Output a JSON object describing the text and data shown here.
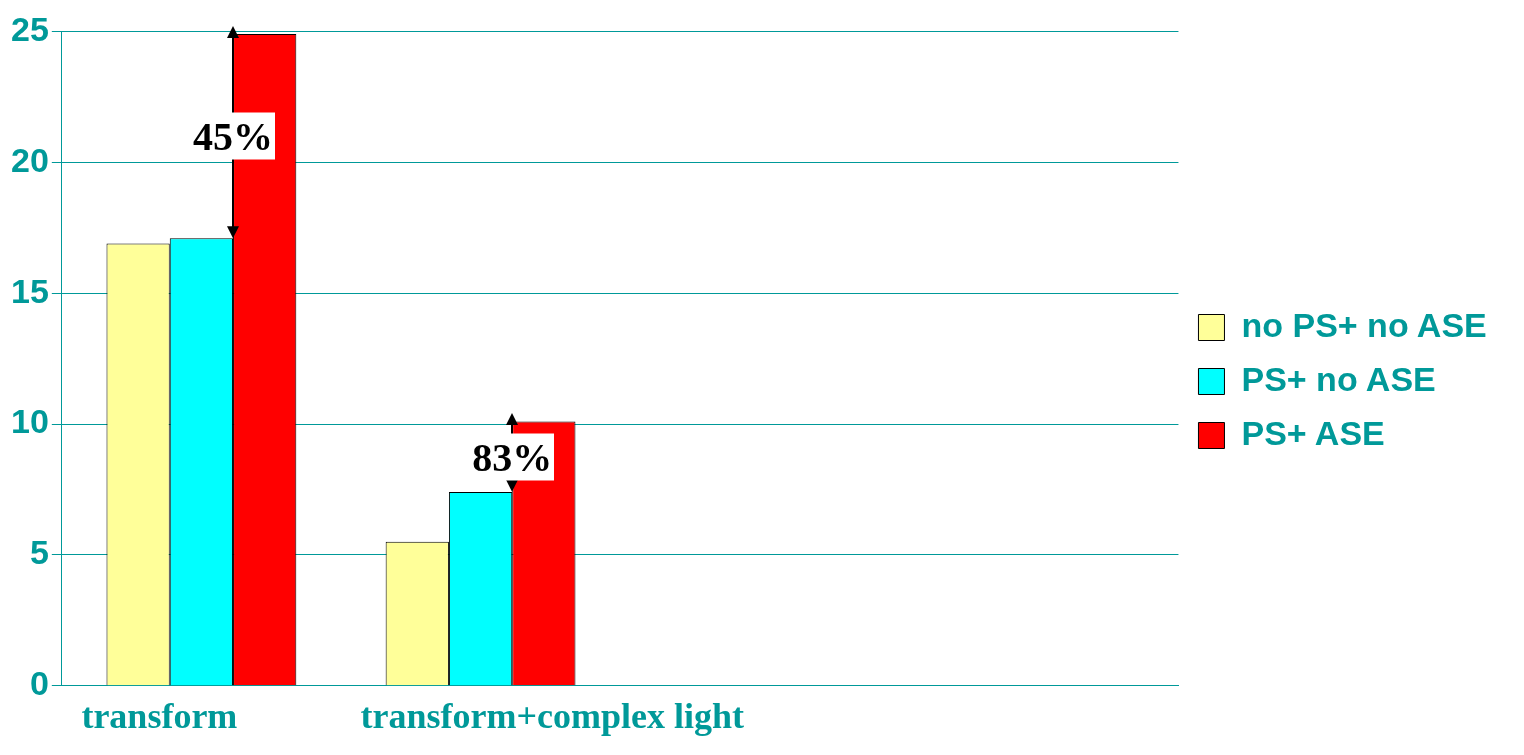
{
  "chart_data": {
    "type": "bar",
    "categories": [
      "transform",
      "transform+complex light",
      null,
      null
    ],
    "series": [
      {
        "name": "no PS+ no ASE",
        "color": "#ffff99",
        "values": [
          16.9,
          5.5,
          null,
          null
        ]
      },
      {
        "name": "PS+ no ASE",
        "color": "#00ffff",
        "values": [
          17.1,
          7.4,
          null,
          null
        ]
      },
      {
        "name": "PS+ ASE",
        "color": "#ff0000",
        "values": [
          24.9,
          10.1,
          null,
          null
        ]
      }
    ],
    "ylim": [
      0,
      25
    ],
    "yticks": [
      0,
      5,
      10,
      15,
      20,
      25
    ],
    "grid": "y",
    "legend": "right",
    "annotations": [
      "45%",
      "83%"
    ]
  }
}
